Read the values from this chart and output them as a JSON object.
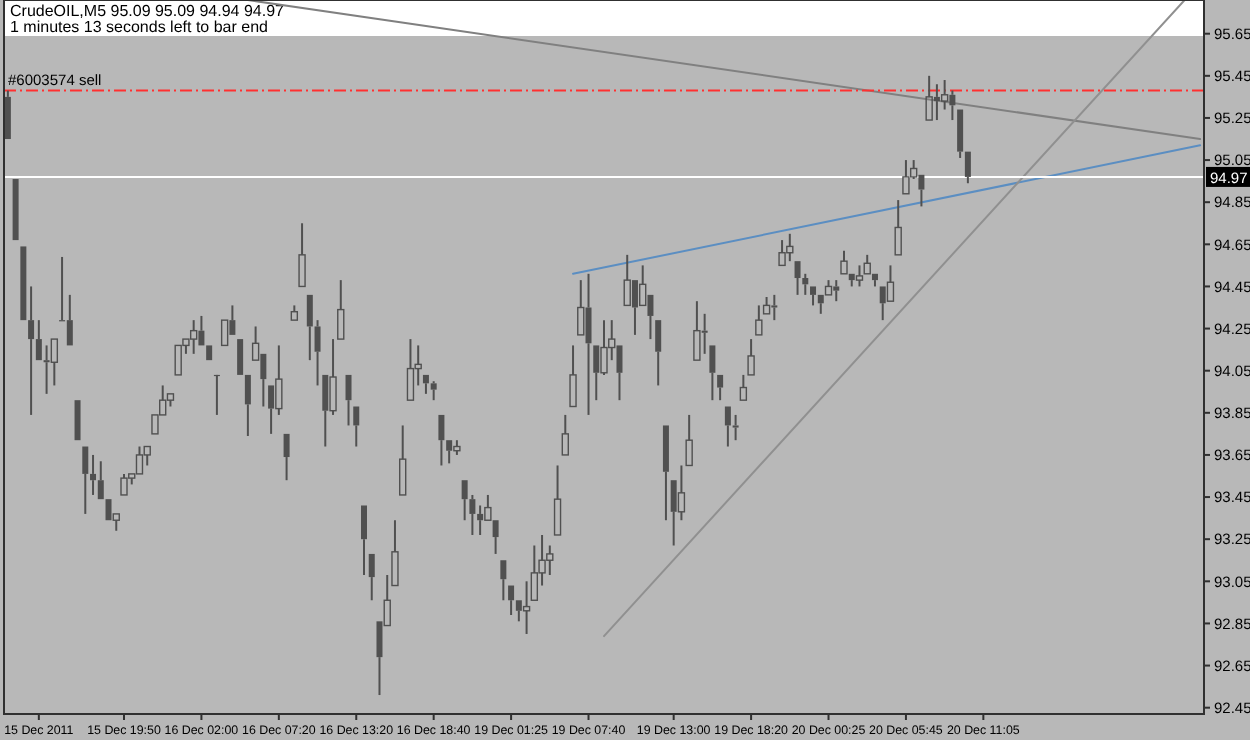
{
  "chart_data": {
    "type": "candlestick",
    "title": "CrudeOIL,M5 95.09 95.09 94.94 94.97",
    "subtitle": "1 minutes 13 seconds left to bar end",
    "color": "#505050",
    "categories": [
      null,
      null,
      null,
      null,
      "15 Dec 2011",
      null,
      null,
      null,
      null,
      null,
      null,
      null,
      null,
      null,
      null,
      "15 Dec 19:50",
      null,
      null,
      null,
      null,
      null,
      null,
      null,
      null,
      null,
      "16 Dec 02:00",
      null,
      null,
      null,
      null,
      null,
      null,
      null,
      null,
      null,
      "16 Dec 07:20",
      null,
      null,
      null,
      null,
      null,
      null,
      null,
      null,
      null,
      "16 Dec 13:20",
      null,
      null,
      null,
      null,
      null,
      null,
      null,
      null,
      null,
      "16 Dec 18:40",
      null,
      null,
      null,
      null,
      null,
      null,
      null,
      null,
      null,
      "19 Dec 01:25",
      null,
      null,
      null,
      null,
      null,
      null,
      null,
      null,
      null,
      "19 Dec 07:40",
      null,
      null,
      null,
      null,
      null,
      null,
      null,
      null,
      null,
      null,
      "19 Dec 13:00",
      null,
      null,
      null,
      null,
      null,
      null,
      null,
      null,
      null,
      "19 Dec 18:20",
      null,
      null,
      null,
      null,
      null,
      null,
      null,
      null,
      null,
      "20 Dec 00:25",
      null,
      null,
      null,
      null,
      null,
      null,
      null,
      null,
      null,
      "20 Dec 05:45",
      null,
      null,
      null,
      null,
      null,
      null,
      null,
      null,
      null,
      "20 Dec 11:05",
      null,
      null,
      null,
      null,
      null,
      null,
      null,
      null,
      null,
      null,
      null,
      null,
      null,
      null,
      null,
      null,
      null,
      null,
      null,
      null,
      null,
      null,
      null,
      null,
      null,
      null,
      null,
      null
    ],
    "ohlc": [
      [
        95.35,
        95.38,
        95.15,
        95.15
      ],
      [
        94.96,
        94.96,
        94.67,
        94.67
      ],
      [
        94.64,
        94.64,
        94.29,
        94.29
      ],
      [
        94.29,
        94.45,
        93.84,
        94.2
      ],
      [
        94.2,
        94.29,
        94.1,
        94.1
      ],
      [
        94.1,
        94.17,
        93.94,
        94.09
      ],
      [
        94.09,
        94.2,
        93.98,
        94.2
      ],
      [
        94.29,
        94.59,
        94.29,
        94.29
      ],
      [
        94.29,
        94.41,
        94.17,
        94.17
      ],
      [
        93.91,
        93.91,
        93.72,
        93.72
      ],
      [
        93.69,
        93.69,
        93.37,
        93.56
      ],
      [
        93.56,
        93.65,
        93.46,
        93.53
      ],
      [
        93.53,
        93.62,
        93.44,
        93.44
      ],
      [
        93.44,
        93.44,
        93.34,
        93.34
      ],
      [
        93.34,
        93.37,
        93.29,
        93.37
      ],
      [
        93.46,
        93.56,
        93.46,
        93.54
      ],
      [
        93.54,
        93.56,
        93.51,
        93.56
      ],
      [
        93.56,
        93.69,
        93.56,
        93.65
      ],
      [
        93.65,
        93.69,
        93.6,
        93.69
      ],
      [
        93.75,
        93.84,
        93.75,
        93.84
      ],
      [
        93.84,
        93.98,
        93.84,
        93.91
      ],
      [
        93.91,
        93.94,
        93.88,
        93.94
      ],
      [
        94.03,
        94.17,
        94.03,
        94.17
      ],
      [
        94.17,
        94.2,
        94.13,
        94.2
      ],
      [
        94.2,
        94.29,
        94.13,
        94.24
      ],
      [
        94.24,
        94.31,
        94.17,
        94.17
      ],
      [
        94.17,
        94.17,
        94.1,
        94.1
      ],
      [
        94.03,
        94.03,
        93.84,
        94.03
      ],
      [
        94.17,
        94.29,
        94.17,
        94.29
      ],
      [
        94.29,
        94.36,
        94.22,
        94.22
      ],
      [
        94.2,
        94.2,
        94.03,
        94.03
      ],
      [
        94.03,
        94.03,
        93.74,
        93.89
      ],
      [
        94.1,
        94.26,
        94.1,
        94.18
      ],
      [
        94.13,
        94.13,
        93.88,
        94.01
      ],
      [
        93.98,
        93.98,
        93.75,
        93.87
      ],
      [
        93.87,
        94.17,
        93.84,
        94.01
      ],
      [
        93.75,
        93.75,
        93.53,
        93.64
      ],
      [
        94.29,
        94.36,
        94.29,
        94.33
      ],
      [
        94.45,
        94.75,
        94.45,
        94.6
      ],
      [
        94.41,
        94.41,
        94.1,
        94.26
      ],
      [
        94.26,
        94.29,
        93.98,
        94.14
      ],
      [
        94.03,
        94.03,
        93.69,
        93.86
      ],
      [
        93.86,
        94.2,
        93.84,
        94.02
      ],
      [
        94.2,
        94.48,
        94.2,
        94.34
      ],
      [
        94.03,
        94.03,
        93.79,
        93.91
      ],
      [
        93.88,
        93.88,
        93.69,
        93.79
      ],
      [
        93.41,
        93.41,
        93.08,
        93.25
      ],
      [
        93.18,
        93.18,
        92.96,
        93.07
      ],
      [
        92.86,
        92.86,
        92.51,
        92.69
      ],
      [
        92.84,
        93.08,
        92.84,
        92.96
      ],
      [
        93.03,
        93.34,
        93.03,
        93.19
      ],
      [
        93.46,
        93.79,
        93.46,
        93.63
      ],
      [
        93.91,
        94.2,
        93.91,
        94.06
      ],
      [
        94.06,
        94.17,
        93.98,
        94.08
      ],
      [
        94.03,
        94.03,
        93.94,
        93.99
      ],
      [
        93.99,
        94,
        93.91,
        93.96
      ],
      [
        93.84,
        93.84,
        93.6,
        93.72
      ],
      [
        93.72,
        93.72,
        93.61,
        93.67
      ],
      [
        93.67,
        93.72,
        93.65,
        93.69
      ],
      [
        93.53,
        93.53,
        93.34,
        93.44
      ],
      [
        93.44,
        93.46,
        93.27,
        93.37
      ],
      [
        93.37,
        93.41,
        93.27,
        93.34
      ],
      [
        93.34,
        93.46,
        93.34,
        93.4
      ],
      [
        93.34,
        93.34,
        93.18,
        93.26
      ],
      [
        93.15,
        93.15,
        92.96,
        93.06
      ],
      [
        93.03,
        93.03,
        92.89,
        92.96
      ],
      [
        92.96,
        92.96,
        92.86,
        92.91
      ],
      [
        92.91,
        93.05,
        92.8,
        92.93
      ],
      [
        92.96,
        93.22,
        92.96,
        93.09
      ],
      [
        93.09,
        93.27,
        93.03,
        93.15
      ],
      [
        93.15,
        93.22,
        93.08,
        93.18
      ],
      [
        93.27,
        93.6,
        93.27,
        93.44
      ],
      [
        93.65,
        93.84,
        93.65,
        93.75
      ],
      [
        93.88,
        94.17,
        93.88,
        94.03
      ],
      [
        94.22,
        94.48,
        94.22,
        94.35
      ],
      [
        94.35,
        94.51,
        93.84,
        94.18
      ],
      [
        94.17,
        94.17,
        93.91,
        94.04
      ],
      [
        94.04,
        94.29,
        94.03,
        94.16
      ],
      [
        94.16,
        94.29,
        94.1,
        94.2
      ],
      [
        94.17,
        94.17,
        93.91,
        94.04
      ],
      [
        94.36,
        94.6,
        94.36,
        94.48
      ],
      [
        94.48,
        94.48,
        94.22,
        94.35
      ],
      [
        94.36,
        94.55,
        94.36,
        94.46
      ],
      [
        94.41,
        94.41,
        94.2,
        94.31
      ],
      [
        94.29,
        94.29,
        93.98,
        94.14
      ],
      [
        93.79,
        93.79,
        93.34,
        93.57
      ],
      [
        93.53,
        93.53,
        93.22,
        93.38
      ],
      [
        93.38,
        93.6,
        93.34,
        93.47
      ],
      [
        93.6,
        93.84,
        93.6,
        93.72
      ],
      [
        94.1,
        94.38,
        94.1,
        94.24
      ],
      [
        94.24,
        94.32,
        94.13,
        94.23
      ],
      [
        94.17,
        94.17,
        93.91,
        94.04
      ],
      [
        94.03,
        94.03,
        93.91,
        93.97
      ],
      [
        93.88,
        93.88,
        93.69,
        93.79
      ],
      [
        93.79,
        93.84,
        93.72,
        93.78
      ],
      [
        93.91,
        94.03,
        93.91,
        93.97
      ],
      [
        94.03,
        94.2,
        94.03,
        94.12
      ],
      [
        94.22,
        94.36,
        94.22,
        94.29
      ],
      [
        94.32,
        94.4,
        94.32,
        94.36
      ],
      [
        94.36,
        94.41,
        94.29,
        94.35
      ],
      [
        94.55,
        94.67,
        94.55,
        94.61
      ],
      [
        94.61,
        94.7,
        94.57,
        94.64
      ],
      [
        94.57,
        94.57,
        94.41,
        94.49
      ],
      [
        94.49,
        94.51,
        94.41,
        94.46
      ],
      [
        94.45,
        94.45,
        94.36,
        94.41
      ],
      [
        94.41,
        94.41,
        94.32,
        94.37
      ],
      [
        94.41,
        94.48,
        94.41,
        94.45
      ],
      [
        94.45,
        94.48,
        94.38,
        94.43
      ],
      [
        94.51,
        94.62,
        94.51,
        94.57
      ],
      [
        94.51,
        94.51,
        94.45,
        94.48
      ],
      [
        94.48,
        94.55,
        94.45,
        94.5
      ],
      [
        94.51,
        94.6,
        94.51,
        94.56
      ],
      [
        94.51,
        94.51,
        94.45,
        94.48
      ],
      [
        94.45,
        94.45,
        94.29,
        94.37
      ],
      [
        94.38,
        94.55,
        94.38,
        94.47
      ],
      [
        94.6,
        94.86,
        94.6,
        94.73
      ],
      [
        94.89,
        95.05,
        94.89,
        94.97
      ],
      [
        94.97,
        95.05,
        94.96,
        95.01
      ],
      [
        94.98,
        94.98,
        94.83,
        94.91
      ],
      [
        95.24,
        95.45,
        95.24,
        95.35
      ],
      [
        95.35,
        95.41,
        95.24,
        95.33
      ],
      [
        95.33,
        95.43,
        95.29,
        95.36
      ],
      [
        95.36,
        95.38,
        95.24,
        95.31
      ],
      [
        95.29,
        95.29,
        95.06,
        95.09
      ],
      [
        95.09,
        95.09,
        94.94,
        94.97
      ],
      null,
      null,
      null,
      null,
      null,
      null,
      null,
      null,
      null,
      null,
      null,
      null,
      null,
      null,
      null,
      null,
      null,
      null,
      null,
      null,
      null,
      null,
      null,
      null,
      null,
      null,
      null,
      null,
      null,
      null
    ],
    "series": [
      {
        "type": "line",
        "color": "#5b8ec2",
        "values": [
          null,
          null,
          null,
          null,
          null,
          null,
          null,
          null,
          null,
          null,
          null,
          null,
          null,
          null,
          null,
          null,
          null,
          null,
          null,
          null,
          null,
          null,
          null,
          null,
          null,
          null,
          null,
          null,
          null,
          null,
          null,
          null,
          null,
          null,
          null,
          null,
          null,
          null,
          null,
          null,
          null,
          null,
          null,
          null,
          null,
          null,
          null,
          null,
          null,
          null,
          null,
          null,
          null,
          null,
          null,
          null,
          null,
          null,
          null,
          null,
          null,
          null,
          null,
          null,
          null,
          null,
          null,
          null,
          null,
          null,
          null,
          null,
          null,
          94.51,
          null,
          null,
          null,
          null,
          null,
          null,
          null,
          null,
          null,
          null,
          null,
          null,
          null,
          null,
          null,
          null,
          null,
          null,
          null,
          null,
          null,
          null,
          null,
          null,
          null,
          null,
          null,
          null,
          null,
          null,
          null,
          null,
          null,
          null,
          null,
          null,
          null,
          null,
          null,
          null,
          null,
          null,
          null,
          null,
          null,
          null,
          null,
          null,
          null,
          null,
          null,
          null,
          null,
          null,
          null,
          null,
          null,
          null,
          null,
          null,
          null,
          null,
          null,
          null,
          null,
          null,
          null,
          null,
          null,
          null,
          null,
          null,
          null,
          null,
          null,
          null,
          null,
          null,
          null,
          null,
          95.12
        ]
      },
      {
        "type": "line",
        "color": "#808080",
        "values": [
          null,
          null,
          null,
          null,
          null,
          null,
          null,
          null,
          null,
          null,
          null,
          null,
          null,
          null,
          null,
          null,
          null,
          null,
          null,
          null,
          null,
          null,
          null,
          null,
          null,
          null,
          null,
          null,
          null,
          null,
          null,
          95.81,
          null,
          null,
          null,
          null,
          null,
          null,
          null,
          null,
          null,
          null,
          null,
          null,
          null,
          null,
          null,
          null,
          null,
          null,
          null,
          null,
          null,
          null,
          null,
          null,
          null,
          null,
          null,
          null,
          null,
          null,
          null,
          null,
          null,
          null,
          null,
          null,
          null,
          null,
          null,
          null,
          null,
          null,
          null,
          null,
          null,
          null,
          null,
          null,
          null,
          null,
          null,
          null,
          null,
          null,
          null,
          null,
          null,
          null,
          null,
          null,
          null,
          null,
          null,
          null,
          null,
          null,
          null,
          null,
          null,
          null,
          null,
          null,
          null,
          null,
          null,
          null,
          null,
          null,
          null,
          null,
          null,
          null,
          null,
          null,
          null,
          null,
          null,
          null,
          null,
          null,
          null,
          null,
          null,
          null,
          null,
          null,
          null,
          null,
          null,
          null,
          null,
          null,
          null,
          null,
          null,
          null,
          null,
          null,
          null,
          null,
          null,
          null,
          null,
          null,
          null,
          null,
          null,
          null,
          null,
          null,
          null,
          null,
          95.15
        ]
      },
      {
        "type": "line",
        "color": "#909090",
        "values": [
          null,
          null,
          null,
          null,
          null,
          null,
          null,
          null,
          null,
          null,
          null,
          null,
          null,
          null,
          null,
          null,
          null,
          null,
          null,
          null,
          null,
          null,
          null,
          null,
          null,
          null,
          null,
          null,
          null,
          null,
          null,
          null,
          null,
          null,
          null,
          null,
          null,
          null,
          null,
          null,
          null,
          null,
          null,
          null,
          null,
          null,
          null,
          null,
          null,
          null,
          null,
          null,
          null,
          null,
          null,
          null,
          null,
          null,
          null,
          null,
          null,
          null,
          null,
          null,
          null,
          null,
          null,
          null,
          null,
          null,
          null,
          null,
          null,
          null,
          null,
          null,
          null,
          92.79,
          null,
          null,
          null,
          null,
          null,
          null,
          null,
          null,
          null,
          null,
          null,
          null,
          null,
          null,
          null,
          null,
          null,
          null,
          null,
          null,
          null,
          null,
          null,
          null,
          null,
          null,
          null,
          null,
          null,
          null,
          null,
          null,
          null,
          null,
          null,
          null,
          null,
          null,
          null,
          null,
          null,
          null,
          null,
          null,
          null,
          null,
          null,
          null,
          null,
          null,
          null,
          null,
          null,
          null,
          null,
          null,
          null,
          null,
          null,
          null,
          null,
          null,
          null,
          null,
          null,
          null,
          null,
          null,
          null,
          null,
          null,
          null,
          null,
          null,
          95.81,
          null,
          null
        ]
      }
    ],
    "ylim": [
      92.42,
      95.81
    ],
    "yticks": [
      92.45,
      92.65,
      92.85,
      93.05,
      93.25,
      93.45,
      93.65,
      93.85,
      94.05,
      94.25,
      94.45,
      94.65,
      94.85,
      95.05,
      95.25,
      95.45,
      95.65
    ],
    "ref_lines": [
      {
        "axis": "y",
        "value": 95.38,
        "label": "#6003574 sell",
        "color": "#ff3030",
        "line_style": "dashed"
      },
      {
        "axis": "y",
        "value": 94.97,
        "label": "94.97",
        "color": "#ffffff"
      }
    ]
  }
}
